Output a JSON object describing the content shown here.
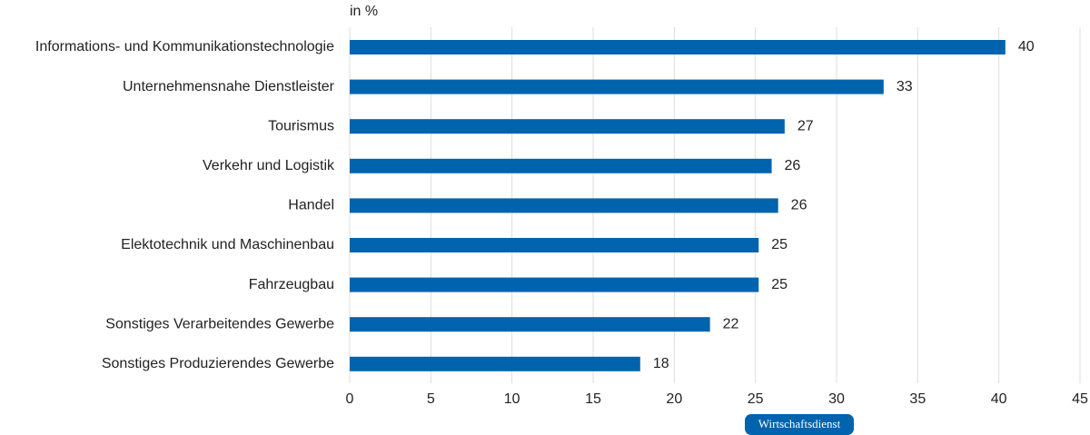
{
  "chart_data": {
    "type": "hbar",
    "unit_label": "in %",
    "categories": [
      "Informations- und Kommunikationstechnologie",
      "Unternehmensnahe Dienstleister",
      "Tourismus",
      "Verkehr und Logistik",
      "Handel",
      "Elektotechnik und Maschinenbau",
      "Fahrzeugbau",
      "Sonstiges Verarbeitendes Gewerbe",
      "Sonstiges Produzierendes Gewerbe"
    ],
    "values": [
      40.4,
      32.9,
      26.8,
      26.0,
      26.4,
      25.2,
      25.2,
      22.2,
      17.9
    ],
    "value_labels": [
      "40",
      "33",
      "27",
      "26",
      "26",
      "25",
      "25",
      "22",
      "18"
    ],
    "color": "#0063ae",
    "xlim": [
      0,
      45
    ],
    "xticks": [
      0,
      5,
      10,
      15,
      20,
      25,
      30,
      35,
      40,
      45
    ],
    "grid": true,
    "source": "Wirtschaftsdienst"
  }
}
